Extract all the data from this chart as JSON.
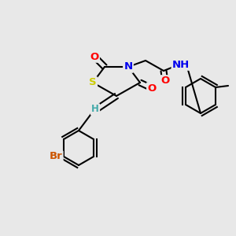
{
  "bg_color": "#e8e8e8",
  "bond_color": "#000000",
  "atom_colors": {
    "S": "#cccc00",
    "N": "#0000ee",
    "O": "#ff0000",
    "Br": "#cc5500",
    "H": "#44aaaa",
    "C": "#000000"
  },
  "font_size": 9.5,
  "font_size_small": 8.5
}
